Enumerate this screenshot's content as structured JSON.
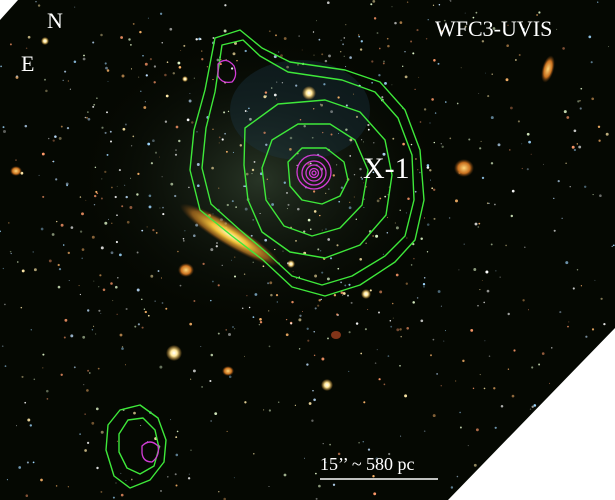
{
  "image": {
    "instrument_label": "WFC3-UVIS",
    "source_label": "X-1",
    "compass": {
      "north_label": "N",
      "east_label": "E"
    },
    "scale_bar_label": "15’’ ~ 580 pc",
    "colors": {
      "background": "#050802",
      "xray_contours": "#3ee83a",
      "radio_contours": "#d23cd6",
      "galaxy_core": "#f2c23a",
      "text": "#ffffff"
    }
  }
}
